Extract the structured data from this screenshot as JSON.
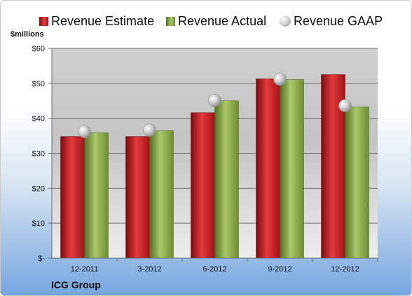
{
  "chart_data": {
    "type": "bar",
    "ylabel": "$millions",
    "ylim": [
      0,
      60
    ],
    "yticks": [
      {
        "value": 0,
        "label": "$-"
      },
      {
        "value": 10,
        "label": "$10"
      },
      {
        "value": 20,
        "label": "$20"
      },
      {
        "value": 30,
        "label": "$30"
      },
      {
        "value": 40,
        "label": "$40"
      },
      {
        "value": 50,
        "label": "$50"
      },
      {
        "value": 60,
        "label": "$60"
      }
    ],
    "categories": [
      "12-2011",
      "3-2012",
      "6-2012",
      "9-2012",
      "12-2012"
    ],
    "series": [
      {
        "name": "Revenue Estimate",
        "kind": "bar",
        "color": "#c81d22",
        "values": [
          34.8,
          34.8,
          41.6,
          51.3,
          52.5
        ]
      },
      {
        "name": "Revenue Actual",
        "kind": "bar",
        "color": "#8faf4e",
        "values": [
          35.9,
          36.5,
          45.0,
          51.1,
          43.3
        ]
      },
      {
        "name": "Revenue GAAP",
        "kind": "marker",
        "color": "#b8b8b8",
        "values": [
          36.2,
          36.6,
          45.1,
          51.2,
          43.6
        ]
      }
    ],
    "grid": true,
    "legend": "top"
  },
  "footer": {
    "company": "ICG Group"
  }
}
